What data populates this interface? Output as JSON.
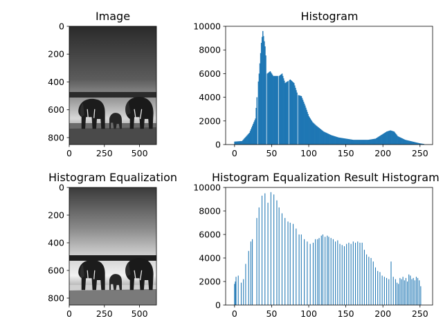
{
  "figure": {
    "background": "#ffffff",
    "bar_color": "#1f77b4"
  },
  "chart_data": [
    {
      "type": "image",
      "title": "Image",
      "depicts": "grayscale photo of elephants in grass",
      "xlim": [
        0,
        620
      ],
      "ylim": [
        850,
        0
      ],
      "xticks": [
        0,
        250,
        500
      ],
      "yticks": [
        0,
        200,
        400,
        600,
        800
      ]
    },
    {
      "type": "bar",
      "title": "Histogram",
      "xlabel": "",
      "ylabel": "",
      "xlim": [
        -12,
        267
      ],
      "ylim": [
        0,
        10000
      ],
      "xticks": [
        0,
        50,
        100,
        150,
        200,
        250
      ],
      "yticks": [
        0,
        2000,
        4000,
        6000,
        8000,
        10000
      ],
      "key_points": [
        [
          0,
          250
        ],
        [
          10,
          300
        ],
        [
          20,
          1000
        ],
        [
          24,
          1600
        ],
        [
          28,
          2200
        ],
        [
          30,
          4000
        ],
        [
          33,
          6000
        ],
        [
          36,
          8600
        ],
        [
          38,
          9600
        ],
        [
          41,
          8300
        ],
        [
          44,
          6000
        ],
        [
          48,
          6200
        ],
        [
          52,
          5800
        ],
        [
          60,
          5800
        ],
        [
          64,
          6000
        ],
        [
          68,
          5200
        ],
        [
          75,
          5500
        ],
        [
          80,
          5200
        ],
        [
          85,
          4200
        ],
        [
          90,
          4100
        ],
        [
          95,
          3300
        ],
        [
          100,
          2400
        ],
        [
          105,
          1900
        ],
        [
          110,
          1600
        ],
        [
          120,
          1100
        ],
        [
          130,
          800
        ],
        [
          140,
          600
        ],
        [
          150,
          500
        ],
        [
          160,
          400
        ],
        [
          170,
          400
        ],
        [
          180,
          400
        ],
        [
          190,
          500
        ],
        [
          195,
          700
        ],
        [
          200,
          900
        ],
        [
          205,
          1100
        ],
        [
          210,
          1200
        ],
        [
          215,
          1100
        ],
        [
          220,
          700
        ],
        [
          230,
          400
        ],
        [
          240,
          250
        ],
        [
          250,
          100
        ],
        [
          255,
          50
        ]
      ]
    },
    {
      "type": "image",
      "title": "Histogram Equalization",
      "depicts": "equalized grayscale photo of elephants in grass",
      "xlim": [
        0,
        620
      ],
      "ylim": [
        850,
        0
      ],
      "xticks": [
        0,
        250,
        500
      ],
      "yticks": [
        0,
        200,
        400,
        600,
        800
      ]
    },
    {
      "type": "bar",
      "title": "Histogram Equalization Result Histogram",
      "xlabel": "",
      "ylabel": "",
      "xlim": [
        -12,
        267
      ],
      "ylim": [
        0,
        10000
      ],
      "xticks": [
        0,
        50,
        100,
        150,
        200,
        250
      ],
      "yticks": [
        0,
        2000,
        4000,
        6000,
        8000,
        10000
      ],
      "bins": [
        [
          0,
          1800
        ],
        [
          1,
          2000
        ],
        [
          2,
          2400
        ],
        [
          5,
          2500
        ],
        [
          9,
          1900
        ],
        [
          12,
          2200
        ],
        [
          15,
          3500
        ],
        [
          19,
          4600
        ],
        [
          22,
          5400
        ],
        [
          24,
          5600
        ],
        [
          30,
          7400
        ],
        [
          33,
          8300
        ],
        [
          37,
          9300
        ],
        [
          41,
          9500
        ],
        [
          45,
          8700
        ],
        [
          49,
          9600
        ],
        [
          53,
          9400
        ],
        [
          57,
          8900
        ],
        [
          60,
          8300
        ],
        [
          64,
          7800
        ],
        [
          68,
          7400
        ],
        [
          72,
          7100
        ],
        [
          75,
          7000
        ],
        [
          79,
          6900
        ],
        [
          83,
          6500
        ],
        [
          87,
          6000
        ],
        [
          90,
          6000
        ],
        [
          94,
          5600
        ],
        [
          98,
          5400
        ],
        [
          102,
          5200
        ],
        [
          106,
          5300
        ],
        [
          109,
          5600
        ],
        [
          112,
          5600
        ],
        [
          114,
          5700
        ],
        [
          117,
          5900
        ],
        [
          119,
          6000
        ],
        [
          122,
          5800
        ],
        [
          125,
          5900
        ],
        [
          127,
          5800
        ],
        [
          130,
          5700
        ],
        [
          133,
          5600
        ],
        [
          136,
          5400
        ],
        [
          139,
          5500
        ],
        [
          142,
          5200
        ],
        [
          145,
          5100
        ],
        [
          148,
          5000
        ],
        [
          151,
          5200
        ],
        [
          154,
          5300
        ],
        [
          157,
          5200
        ],
        [
          160,
          5400
        ],
        [
          163,
          5300
        ],
        [
          166,
          5400
        ],
        [
          169,
          5300
        ],
        [
          172,
          5300
        ],
        [
          175,
          4700
        ],
        [
          178,
          4300
        ],
        [
          181,
          4100
        ],
        [
          184,
          4000
        ],
        [
          187,
          3700
        ],
        [
          190,
          3200
        ],
        [
          193,
          2900
        ],
        [
          196,
          2800
        ],
        [
          199,
          2500
        ],
        [
          202,
          2400
        ],
        [
          205,
          2300
        ],
        [
          208,
          2200
        ],
        [
          211,
          3700
        ],
        [
          214,
          2400
        ],
        [
          217,
          2200
        ],
        [
          219,
          1900
        ],
        [
          221,
          1800
        ],
        [
          223,
          2300
        ],
        [
          225,
          2200
        ],
        [
          227,
          2400
        ],
        [
          229,
          2100
        ],
        [
          231,
          2300
        ],
        [
          233,
          2000
        ],
        [
          235,
          2600
        ],
        [
          237,
          2500
        ],
        [
          239,
          2200
        ],
        [
          241,
          2300
        ],
        [
          243,
          2100
        ],
        [
          245,
          2400
        ],
        [
          247,
          2300
        ],
        [
          249,
          2100
        ],
        [
          251,
          1600
        ]
      ]
    }
  ]
}
